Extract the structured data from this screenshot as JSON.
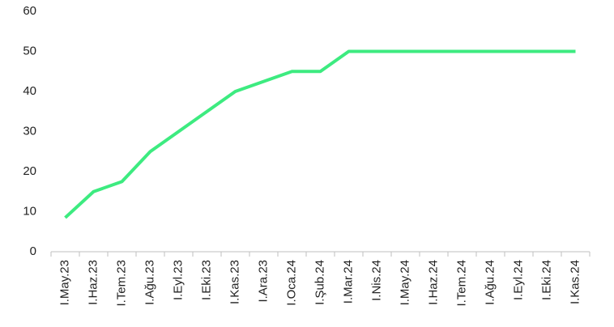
{
  "chart_data": {
    "type": "line",
    "categories": [
      "I.May.23",
      "I.Haz.23",
      "I.Tem.23",
      "I.Ağu.23",
      "I.Eyl.23",
      "I.Eki.23",
      "I.Kas.23",
      "I.Ara.23",
      "I.Oca.24",
      "I.Şub.24",
      "I.Mar.24",
      "I.Nis.24",
      "I.May.24",
      "I.Haz.24",
      "I.Tem.24",
      "I.Ağu.24",
      "I.Eyl.24",
      "I.Eki.24",
      "I.Kas.24"
    ],
    "values": [
      8.5,
      15,
      17.5,
      25,
      30,
      35,
      40,
      42.5,
      45,
      45,
      50,
      50,
      50,
      50,
      50,
      50,
      50,
      50,
      50
    ],
    "color": "#3deb80",
    "ylim": [
      0,
      60
    ],
    "yticks": [
      0,
      10,
      20,
      30,
      40,
      50,
      60
    ],
    "grid": false
  }
}
